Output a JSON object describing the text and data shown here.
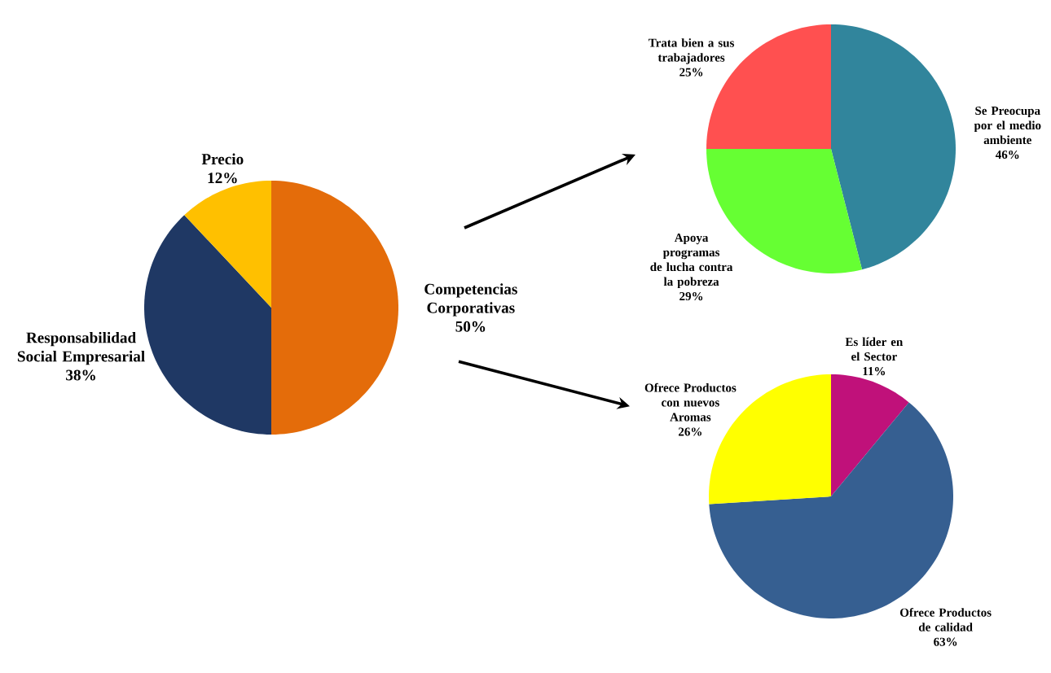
{
  "chart_data": [
    {
      "type": "pie",
      "categories": [
        "Competencias Corporativas",
        "Responsabilidad Social Empresarial",
        "Precio"
      ],
      "values": [
        50,
        38,
        12
      ],
      "colors": [
        "#e46c0a",
        "#1f3864",
        "#ffc000"
      ],
      "value_labels": [
        "50%",
        "38%",
        "12%"
      ]
    },
    {
      "type": "pie",
      "categories": [
        "Se Preocupa por el medio ambiente",
        "Apoya programas de lucha contra la pobreza",
        "Trata bien a sus trabajadores"
      ],
      "values": [
        46,
        29,
        25
      ],
      "colors": [
        "#31859c",
        "#66ff33",
        "#ff5050"
      ],
      "value_labels": [
        "46%",
        "29%",
        "25%"
      ]
    },
    {
      "type": "pie",
      "categories": [
        "Es líder en el Sector",
        "Ofrece Productos de calidad",
        "Ofrece Productos con nuevos Aromas"
      ],
      "values": [
        11,
        63,
        26
      ],
      "colors": [
        "#c0117a",
        "#365f91",
        "#ffff00"
      ],
      "value_labels": [
        "11%",
        "63%",
        "26%"
      ]
    }
  ]
}
